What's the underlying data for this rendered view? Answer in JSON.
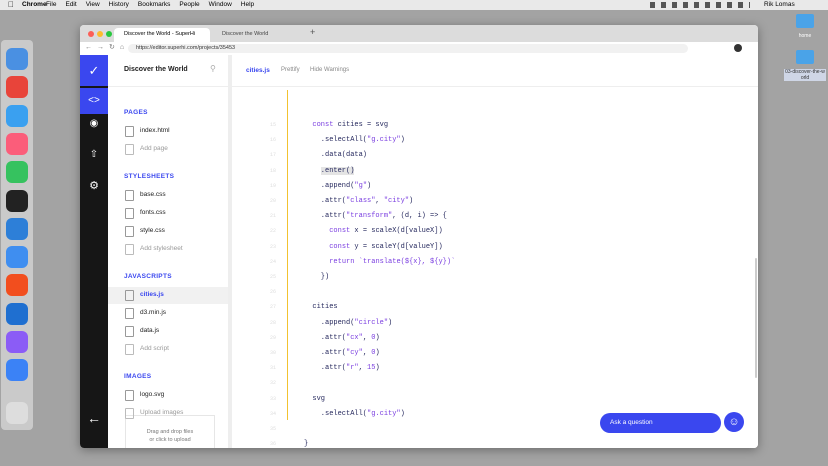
{
  "menubar": {
    "app": "Chrome",
    "menus": [
      "File",
      "Edit",
      "View",
      "History",
      "Bookmarks",
      "People",
      "Window",
      "Help"
    ],
    "user": "Rik Lomas"
  },
  "desktop": {
    "icons": [
      "home",
      "03-discover-the-world"
    ]
  },
  "browser": {
    "tabs": [
      "Discover the World - SuperHi",
      "Discover the World"
    ],
    "url": "https://editor.superhi.com/projects/35453"
  },
  "sidebar": {
    "project": "Discover the World",
    "sections": [
      {
        "title": "PAGES",
        "files": [
          "index.html"
        ],
        "action": "Add page"
      },
      {
        "title": "STYLESHEETS",
        "files": [
          "base.css",
          "fonts.css",
          "style.css"
        ],
        "action": "Add stylesheet"
      },
      {
        "title": "JAVASCRIPTS",
        "files": [
          "cities.js",
          "d3.min.js",
          "data.js"
        ],
        "action": "Add script"
      },
      {
        "title": "IMAGES",
        "files": [
          "logo.svg"
        ],
        "action": "Upload images"
      }
    ],
    "dropzone": [
      "Drag and drop files",
      "or click to upload"
    ]
  },
  "editor": {
    "file": "cities.js",
    "actions": [
      "Prettify",
      "Hide Warnings"
    ],
    "lines": [
      {
        "number": 15,
        "code": "  const cities = svg"
      },
      {
        "number": 16,
        "code": "    .selectAll(\"g.city\")"
      },
      {
        "number": 17,
        "code": "    .data(data)"
      },
      {
        "number": 18,
        "code": "    .enter()"
      },
      {
        "number": 19,
        "code": "    .append(\"g\")"
      },
      {
        "number": 20,
        "code": "    .attr(\"class\", \"city\")"
      },
      {
        "number": 21,
        "code": "    .attr(\"transform\", (d, i) => {"
      },
      {
        "number": 22,
        "code": "      const x = scaleX(d[valueX])"
      },
      {
        "number": 23,
        "code": "      const y = scaleY(d[valueY])"
      },
      {
        "number": 24,
        "code": "      return `translate(${x}, ${y})`"
      },
      {
        "number": 25,
        "code": "    })"
      },
      {
        "number": 26,
        "code": ""
      },
      {
        "number": 27,
        "code": "  cities"
      },
      {
        "number": 28,
        "code": "    .append(\"circle\")"
      },
      {
        "number": 29,
        "code": "    .attr(\"cx\", 0)"
      },
      {
        "number": 30,
        "code": "    .attr(\"cy\", 0)"
      },
      {
        "number": 31,
        "code": "    .attr(\"r\", 15)"
      },
      {
        "number": 32,
        "code": ""
      },
      {
        "number": 33,
        "code": "  svg"
      },
      {
        "number": 34,
        "code": "    .selectAll(\"g.city\")"
      },
      {
        "number": 35,
        "code": ""
      },
      {
        "number": 36,
        "code": "}"
      },
      {
        "number": 37,
        "code": ""
      }
    ]
  },
  "help": {
    "button": "Ask a question"
  }
}
